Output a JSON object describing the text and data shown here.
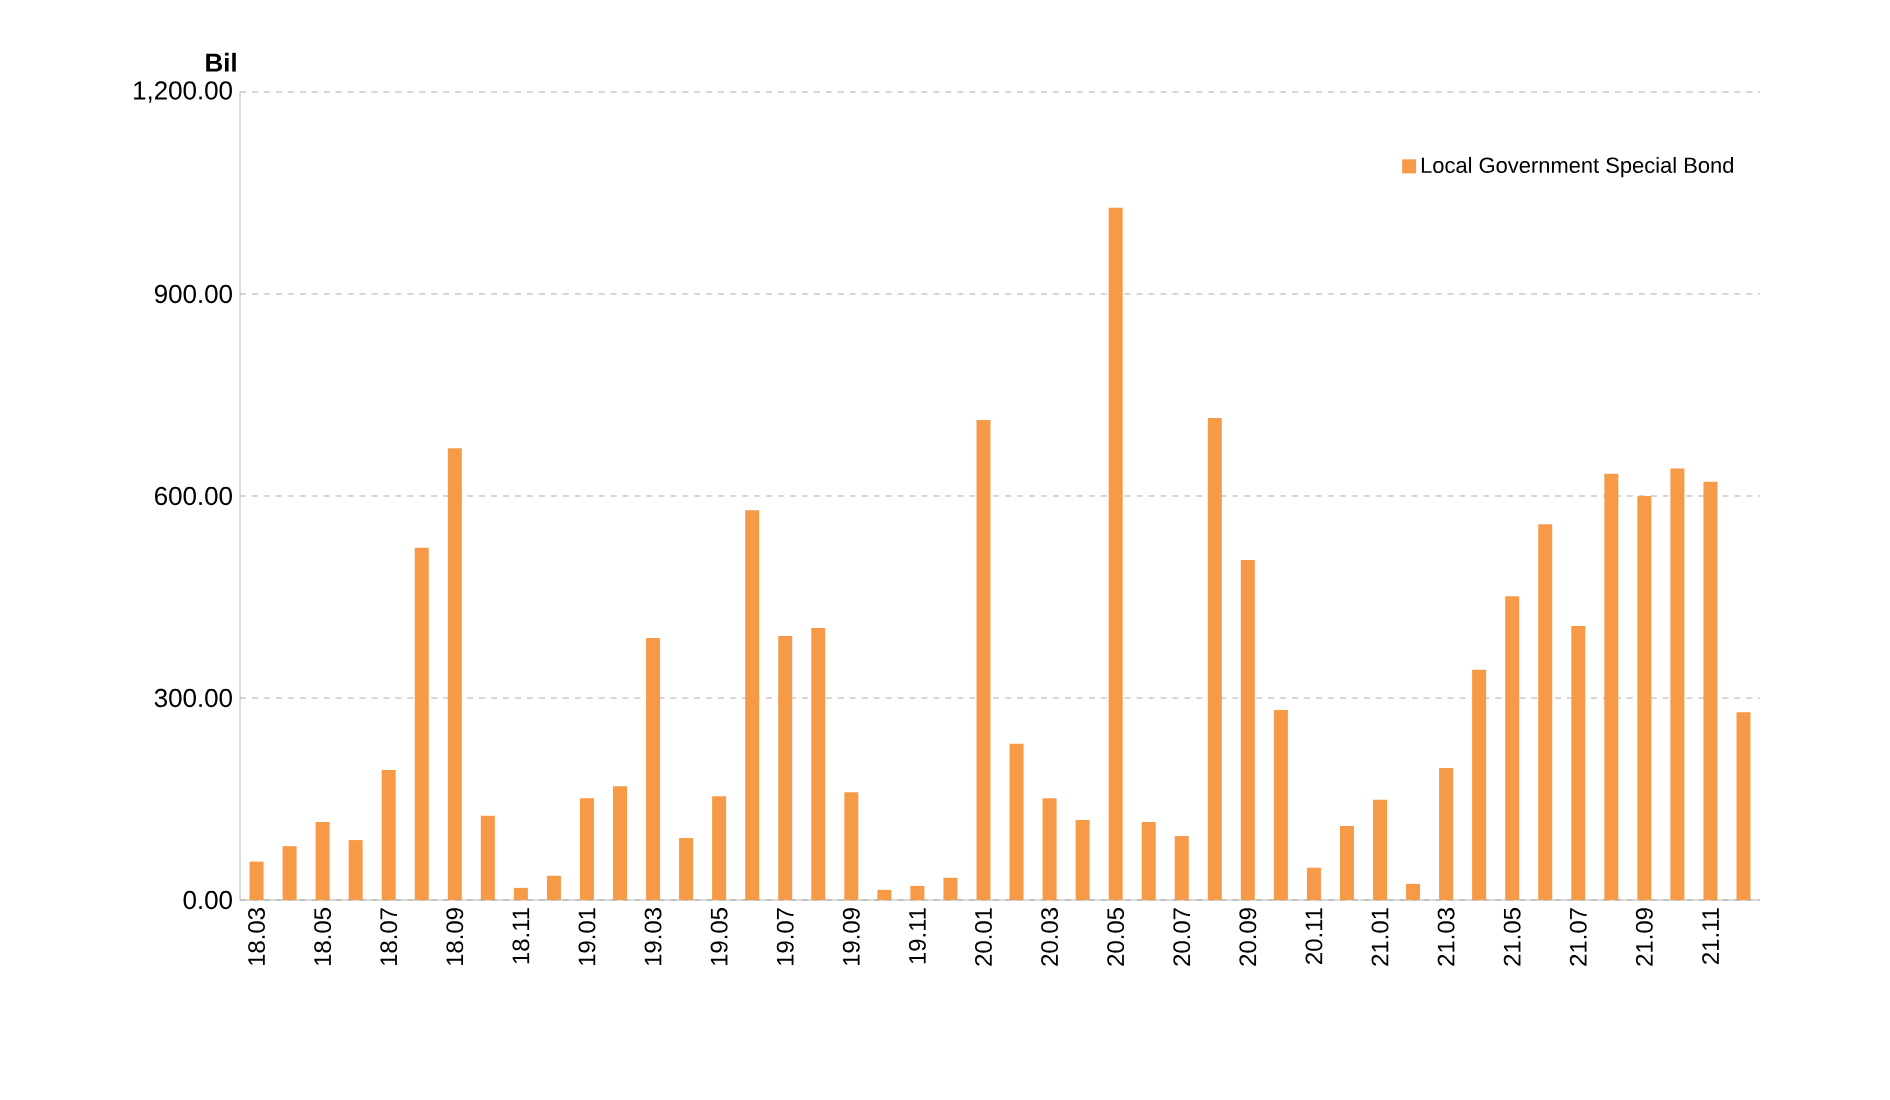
{
  "chart_data": {
    "type": "bar",
    "ylabel": "Bil",
    "categories": [
      "18.03",
      null,
      "18.05",
      null,
      "18.07",
      null,
      "18.09",
      null,
      "18.11",
      null,
      "19.01",
      null,
      "19.03",
      null,
      "19.05",
      null,
      "19.07",
      null,
      "19.09",
      null,
      "19.11",
      null,
      "20.01",
      null,
      "20.03",
      null,
      "20.05",
      null,
      "20.07",
      null,
      "20.09",
      null,
      "20.11",
      null,
      "21.01",
      null,
      "21.03",
      null,
      "21.05",
      null,
      "21.07",
      null,
      "21.09",
      null,
      "21.11",
      null
    ],
    "series": [
      {
        "name": "Local Government Special Bond",
        "color": "#f79a48",
        "values": [
          57,
          80,
          116,
          89,
          193,
          523,
          671,
          125,
          18,
          36,
          151,
          169,
          389,
          92,
          154,
          579,
          392,
          404,
          160,
          15,
          21,
          33,
          713,
          232,
          151,
          119,
          1028,
          116,
          95,
          716,
          505,
          282,
          48,
          110,
          149,
          24,
          196,
          342,
          451,
          558,
          407,
          633,
          600,
          641,
          621,
          279
        ]
      }
    ],
    "ylim": [
      0,
      1200
    ],
    "yticks": [
      {
        "value": 0,
        "label": "0.00"
      },
      {
        "value": 300,
        "label": "300.00"
      },
      {
        "value": 600,
        "label": "600.00"
      },
      {
        "value": 900,
        "label": "900.00"
      },
      {
        "value": 1200,
        "label": "1,200.00"
      }
    ],
    "grid": "y",
    "legend": "top right"
  }
}
